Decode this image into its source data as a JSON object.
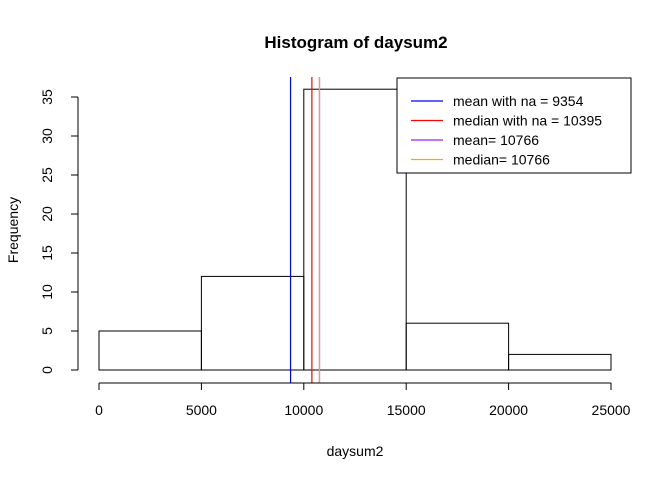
{
  "chart_data": {
    "type": "bar",
    "title": "Histogram of daysum2",
    "xlabel": "daysum2",
    "ylabel": "Frequency",
    "xlim": [
      0,
      25000
    ],
    "ylim": [
      0,
      35
    ],
    "bins": [
      {
        "from": 0,
        "to": 5000,
        "count": 5
      },
      {
        "from": 5000,
        "to": 10000,
        "count": 12
      },
      {
        "from": 10000,
        "to": 15000,
        "count": 36
      },
      {
        "from": 15000,
        "to": 20000,
        "count": 6
      },
      {
        "from": 20000,
        "to": 25000,
        "count": 2
      }
    ],
    "x_ticks": [
      0,
      5000,
      10000,
      15000,
      20000,
      25000
    ],
    "y_ticks": [
      0,
      5,
      10,
      15,
      20,
      25,
      30,
      35
    ],
    "grid": false,
    "legend_position": "top-right",
    "vlines": [
      {
        "label": "mean with na =  9354",
        "value": 9354,
        "color": "#0000ff"
      },
      {
        "label": "median with na =  10395",
        "value": 10395,
        "color": "#ff0000"
      },
      {
        "label": "mean= 10766",
        "value": 10766,
        "color": "#a020f0"
      },
      {
        "label": "median= 10766",
        "value": 10766,
        "color": "#ffa500"
      }
    ]
  }
}
